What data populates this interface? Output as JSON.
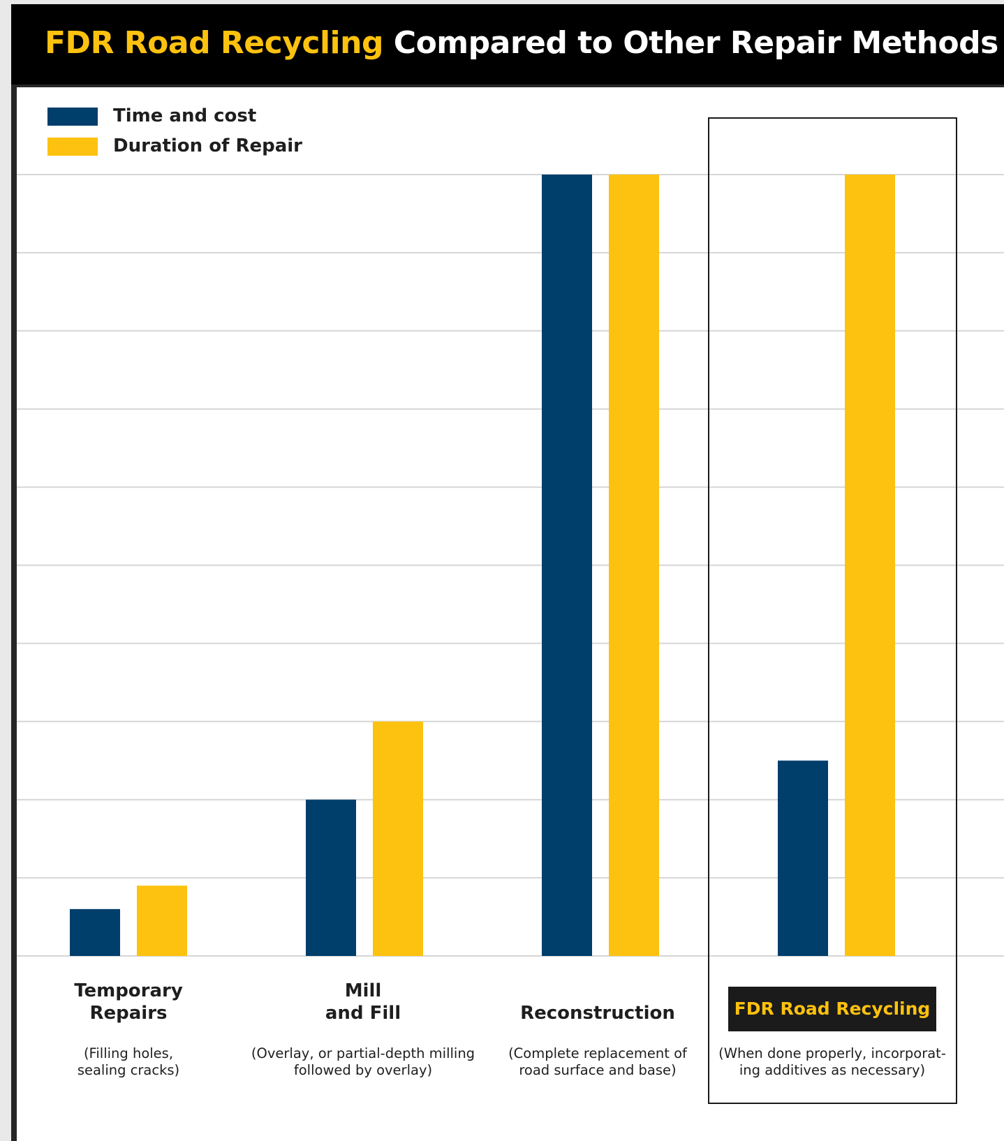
{
  "title": {
    "highlight": "FDR Road Recycling",
    "rest": "Compared to Other Repair Methods"
  },
  "colors": {
    "time_cost": "#003e6b",
    "duration": "#fdc20f",
    "title_highlight": "#fdc20f",
    "gridline": "#d6d6d6"
  },
  "chart_data": {
    "type": "bar",
    "title": "FDR Road Recycling Compared to Other Repair Methods",
    "categories": [
      "Temporary Repairs",
      "Mill and Fill",
      "Reconstruction",
      "FDR Road Recycling"
    ],
    "descriptions": [
      "(Filling holes, sealing cracks)",
      "(Overlay, or partial-depth milling followed by overlay)",
      "(Complete replacement of road surface and base)",
      "(When done properly, incorporating additives as necessary)"
    ],
    "series": [
      {
        "name": "Time and cost",
        "values": [
          0.6,
          2.0,
          10.0,
          2.5
        ]
      },
      {
        "name": "Duration of Repair",
        "values": [
          0.9,
          3.0,
          10.0,
          10.0
        ]
      }
    ],
    "ylim": [
      0,
      10
    ],
    "grid": true,
    "gridlines": 10,
    "legend_position": "top-left",
    "highlighted_category": "FDR Road Recycling"
  },
  "legend": {
    "time_cost": "Time and cost",
    "duration": "Duration of Repair"
  },
  "labels": {
    "temporary": {
      "line1": "Temporary",
      "line2": "Repairs",
      "desc1": "(Filling holes,",
      "desc2": "sealing cracks)"
    },
    "mill": {
      "line1": "Mill",
      "line2": "and Fill",
      "desc1": "(Overlay, or partial-depth milling",
      "desc2": "followed by overlay)"
    },
    "reconstruction": {
      "line1": "Reconstruction",
      "desc1": "(Complete replacement of",
      "desc2": "road surface and base)"
    },
    "fdr": {
      "badge": "FDR Road Recycling",
      "desc1": "(When done properly, incorporat-",
      "desc2": "ing additives as necessary)"
    }
  }
}
